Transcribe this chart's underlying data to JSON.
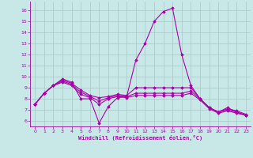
{
  "xlabel": "Windchill (Refroidissement éolien,°C)",
  "xlim": [
    -0.5,
    23.5
  ],
  "ylim": [
    5.5,
    16.8
  ],
  "yticks": [
    6,
    7,
    8,
    9,
    10,
    11,
    12,
    13,
    14,
    15,
    16
  ],
  "xticks": [
    0,
    1,
    2,
    3,
    4,
    5,
    6,
    7,
    8,
    9,
    10,
    11,
    12,
    13,
    14,
    15,
    16,
    17,
    18,
    19,
    20,
    21,
    22,
    23
  ],
  "background_color": "#c8e8e8",
  "grid_color": "#a8c8c8",
  "line_color": "#aa00aa",
  "series": [
    [
      7.5,
      8.5,
      9.2,
      9.8,
      9.5,
      8.0,
      8.0,
      5.8,
      7.3,
      8.1,
      8.2,
      11.5,
      13.0,
      15.0,
      15.9,
      16.2,
      12.0,
      9.2,
      8.0,
      7.2,
      6.8,
      7.2,
      6.8,
      6.5
    ],
    [
      7.5,
      8.5,
      9.2,
      9.7,
      9.4,
      8.8,
      8.3,
      8.1,
      8.2,
      8.4,
      8.3,
      9.0,
      9.0,
      9.0,
      9.0,
      9.0,
      9.0,
      9.0,
      8.0,
      7.2,
      6.8,
      7.1,
      6.9,
      6.6
    ],
    [
      7.5,
      8.5,
      9.2,
      9.6,
      9.3,
      8.6,
      8.2,
      7.8,
      8.1,
      8.3,
      8.2,
      8.5,
      8.5,
      8.5,
      8.5,
      8.5,
      8.5,
      8.7,
      8.0,
      7.2,
      6.8,
      7.0,
      6.8,
      6.5
    ],
    [
      7.5,
      8.5,
      9.2,
      9.5,
      9.2,
      8.4,
      8.1,
      7.5,
      8.0,
      8.2,
      8.1,
      8.3,
      8.3,
      8.3,
      8.3,
      8.3,
      8.3,
      8.5,
      7.9,
      7.1,
      6.7,
      6.9,
      6.7,
      6.5
    ]
  ],
  "marker": "D",
  "markersize": 1.8,
  "linewidth": 0.8
}
